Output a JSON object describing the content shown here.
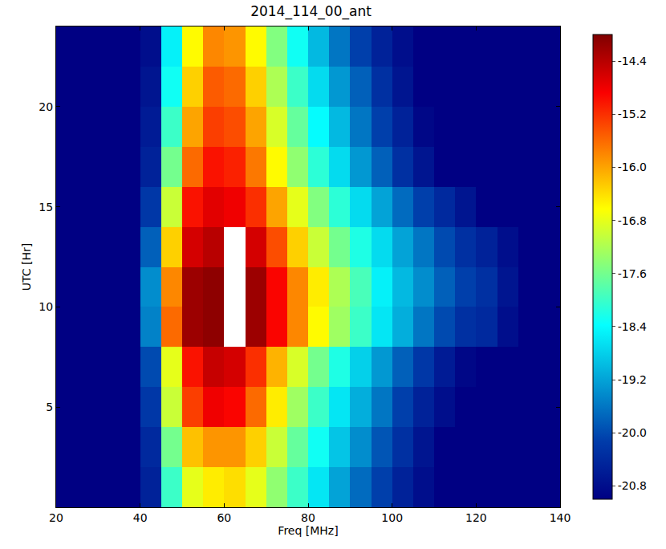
{
  "chart_data": {
    "type": "heatmap",
    "title": "2014_114_00_ant",
    "xlabel": "Freq [MHz]",
    "ylabel": "UTC [Hr]",
    "x": [
      22.5,
      27.5,
      32.5,
      37.5,
      42.5,
      47.5,
      52.5,
      57.5,
      62.5,
      67.5,
      72.5,
      77.5,
      82.5,
      87.5,
      92.5,
      97.5,
      102.5,
      107.5,
      112.5,
      117.5,
      122.5,
      127.5,
      132.5,
      137.5
    ],
    "y": [
      1,
      3,
      5,
      7,
      9,
      11,
      13,
      15,
      17,
      19,
      21,
      23
    ],
    "z": [
      [
        -21,
        -21,
        -21,
        -21,
        -20.5,
        -18,
        -16.8,
        -16.5,
        -16.4,
        -16.8,
        -17.4,
        -18,
        -18.6,
        -19.2,
        -19.7,
        -20.1,
        -20.5,
        -20.8,
        -21,
        -21,
        -21,
        -21,
        -21,
        -21
      ],
      [
        -21,
        -21,
        -21,
        -21,
        -20.4,
        -17.6,
        -16.2,
        -15.9,
        -15.9,
        -16.3,
        -17,
        -17.7,
        -18.3,
        -18.9,
        -19.4,
        -19.9,
        -20.3,
        -20.7,
        -21,
        -21,
        -21,
        -21,
        -21,
        -21
      ],
      [
        -21,
        -21,
        -21,
        -21,
        -20.2,
        -17,
        -15.3,
        -14.8,
        -14.9,
        -15.6,
        -16.5,
        -17.3,
        -18,
        -18.6,
        -19.1,
        -19.6,
        -20.1,
        -20.5,
        -20.8,
        -21,
        -21,
        -21,
        -21,
        -21
      ],
      [
        -21,
        -21,
        -21,
        -21,
        -20,
        -16.8,
        -15,
        -14.5,
        -14.6,
        -15.2,
        -16.1,
        -16.9,
        -17.6,
        -18.2,
        -18.8,
        -19.3,
        -19.8,
        -20.2,
        -20.6,
        -20.9,
        -21,
        -21,
        -21,
        -21
      ],
      [
        -21,
        -21,
        -21,
        -21,
        -19.5,
        -15.6,
        -14.2,
        -14.1,
        null,
        -14.2,
        -14.9,
        -15.8,
        -16.6,
        -17.3,
        -18,
        -18.6,
        -19.1,
        -19.6,
        -20,
        -20.3,
        -20.4,
        -20.8,
        -21,
        -21
      ],
      [
        -21,
        -21,
        -21,
        -21,
        -19.4,
        -15.8,
        -14.2,
        -14.1,
        null,
        -14.2,
        -14.9,
        -15.8,
        -16.5,
        -17.2,
        -17.9,
        -18.5,
        -19,
        -19.4,
        -19.8,
        -20.1,
        -20.3,
        -20.7,
        -21,
        -21
      ],
      [
        -21,
        -21,
        -21,
        -21,
        -19.8,
        -16.3,
        -14.6,
        -14.4,
        null,
        -14.6,
        -15.4,
        -16.3,
        -17,
        -17.6,
        -18.2,
        -18.7,
        -19.2,
        -19.6,
        -20,
        -20.3,
        -20.5,
        -20.8,
        -21,
        -21
      ],
      [
        -21,
        -21,
        -21,
        -21,
        -20.2,
        -17,
        -15,
        -14.7,
        -14.8,
        -15.2,
        -16,
        -16.8,
        -17.5,
        -18.1,
        -18.7,
        -19.2,
        -19.7,
        -20.1,
        -20.4,
        -20.7,
        -21,
        -21,
        -21,
        -21
      ],
      [
        -21,
        -21,
        -21,
        -21,
        -20.5,
        -17.6,
        -15.6,
        -15,
        -15.1,
        -15.7,
        -16.6,
        -17.4,
        -18.1,
        -18.7,
        -19.3,
        -19.8,
        -20.3,
        -20.7,
        -21,
        -21,
        -21,
        -21,
        -21,
        -21
      ],
      [
        -21,
        -21,
        -21,
        -21,
        -20.6,
        -18,
        -16,
        -15.3,
        -15.4,
        -16,
        -16.9,
        -17.7,
        -18.4,
        -19,
        -19.6,
        -20.1,
        -20.5,
        -20.9,
        -21,
        -21,
        -21,
        -21,
        -21,
        -21
      ],
      [
        -21,
        -21,
        -21,
        -21,
        -20.7,
        -18.3,
        -16.3,
        -15.5,
        -15.6,
        -16.3,
        -17.2,
        -18,
        -18.7,
        -19.3,
        -19.8,
        -20.3,
        -20.7,
        -21,
        -21,
        -21,
        -21,
        -21,
        -21,
        -21
      ],
      [
        -21,
        -21,
        -21,
        -21,
        -20.8,
        -18.5,
        -16.6,
        -15.8,
        -15.9,
        -16.6,
        -17.5,
        -18.3,
        -19,
        -19.6,
        -20.1,
        -20.5,
        -20.8,
        -21,
        -21,
        -21,
        -21,
        -21,
        -21,
        -21
      ]
    ],
    "xlim": [
      20,
      140
    ],
    "ylim": [
      0,
      24
    ],
    "xticks": [
      20,
      40,
      60,
      80,
      100,
      120,
      140
    ],
    "yticks": [
      5,
      10,
      15,
      20
    ],
    "zlim": [
      -21,
      -14
    ],
    "zticks": [
      -14.4,
      -15.2,
      {
        "value": -16,
        "label": "-16.0"
      },
      -16.8,
      -17.6,
      -18.4,
      -19.2,
      {
        "value": -20,
        "label": "-20.0"
      },
      -20.8
    ]
  }
}
